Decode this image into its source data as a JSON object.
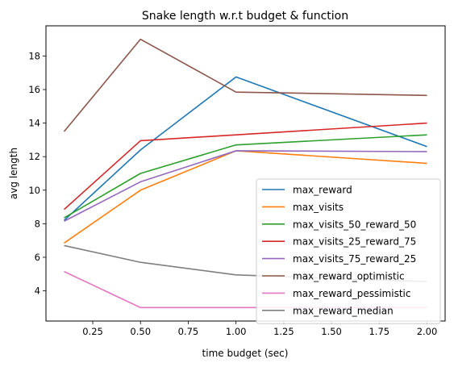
{
  "chart_data": {
    "type": "line",
    "title": "Snake length w.r.t budget & function",
    "xlabel": "time budget (sec)",
    "ylabel": "avg length",
    "xlim": [
      0.005,
      2.095
    ],
    "ylim": [
      2.2,
      19.8
    ],
    "xticks": [
      0.25,
      0.5,
      0.75,
      1.0,
      1.25,
      1.5,
      1.75,
      2.0
    ],
    "xtick_labels": [
      "0.25",
      "0.50",
      "0.75",
      "1.00",
      "1.25",
      "1.50",
      "1.75",
      "2.00"
    ],
    "yticks": [
      4,
      6,
      8,
      10,
      12,
      14,
      16,
      18
    ],
    "ytick_labels": [
      "4",
      "6",
      "8",
      "10",
      "12",
      "14",
      "16",
      "18"
    ],
    "grid": false,
    "legend_position": "lower-right",
    "x": [
      0.1,
      0.5,
      1.0,
      2.0
    ],
    "series": [
      {
        "name": "max_reward",
        "color": "#1f77b4",
        "values": [
          8.2,
          12.4,
          16.75,
          12.6
        ]
      },
      {
        "name": "max_visits",
        "color": "#ff7f0e",
        "values": [
          6.85,
          10.0,
          12.35,
          11.6
        ]
      },
      {
        "name": "max_visits_50_reward_50",
        "color": "#2ca02c",
        "values": [
          8.35,
          11.0,
          12.7,
          13.3
        ]
      },
      {
        "name": "max_visits_25_reward_75",
        "color": "#d62728",
        "values": [
          8.85,
          12.95,
          13.3,
          14.0
        ]
      },
      {
        "name": "max_visits_75_reward_25",
        "color": "#9467bd",
        "values": [
          8.15,
          10.5,
          12.35,
          12.3
        ]
      },
      {
        "name": "max_reward_optimistic",
        "color": "#8c564b",
        "values": [
          13.5,
          19.0,
          15.85,
          15.65
        ]
      },
      {
        "name": "max_reward_pessimistic",
        "color": "#e377c2",
        "values": [
          5.15,
          3.0,
          3.0,
          3.0
        ]
      },
      {
        "name": "max_reward_median",
        "color": "#7f7f7f",
        "values": [
          6.7,
          5.7,
          4.95,
          4.55
        ]
      }
    ]
  }
}
